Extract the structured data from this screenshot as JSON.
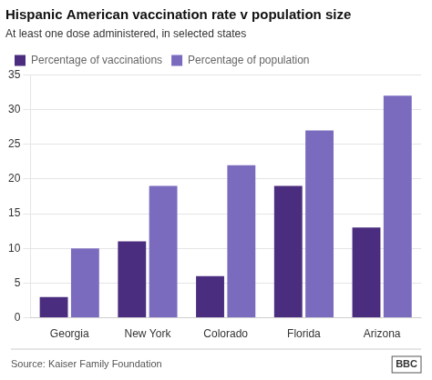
{
  "chart_data": {
    "type": "bar",
    "title": "Hispanic American vaccination rate v population size",
    "subtitle": "At least one dose administered, in selected states",
    "categories": [
      "Georgia",
      "New York",
      "Colorado",
      "Florida",
      "Arizona"
    ],
    "series": [
      {
        "name": "Percentage of vaccinations",
        "color": "#4B2D7F",
        "values": [
          3,
          11,
          6,
          19,
          13
        ]
      },
      {
        "name": "Percentage of population",
        "color": "#7B6BBF",
        "values": [
          10,
          19,
          22,
          27,
          32
        ]
      }
    ],
    "ylim": [
      0,
      35
    ],
    "yticks": [
      0,
      5,
      10,
      15,
      20,
      25,
      30,
      35
    ],
    "grid": true,
    "legend": "top",
    "annotations": [
      "Source: Kaiser Family Foundation",
      "BBC"
    ]
  }
}
